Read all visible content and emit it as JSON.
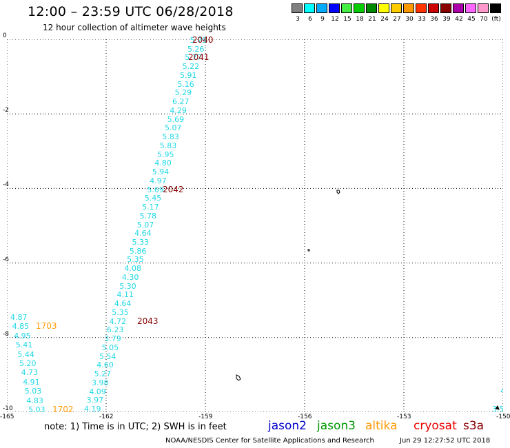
{
  "title": "12:00 – 23:59 UTC 06/28/2018",
  "subtitle": "12 hour collection of altimeter wave heights",
  "legend": {
    "colors": [
      "#808080",
      "#00ffff",
      "#00aaff",
      "#0000ff",
      "#44ee44",
      "#00cc00",
      "#008800",
      "#ffff00",
      "#ffcc00",
      "#ff9900",
      "#ff3300",
      "#cc0000",
      "#880000",
      "#aa00aa",
      "#ff66ff",
      "#ff99cc",
      "#000000"
    ],
    "labels": [
      "3",
      "6",
      "9",
      "12",
      "15",
      "18",
      "21",
      "24",
      "27",
      "30",
      "33",
      "36",
      "39",
      "42",
      "45",
      "70",
      "(ft)"
    ]
  },
  "axes": {
    "x_ticks": [
      "-165",
      "-162",
      "-159",
      "-156",
      "-153",
      "-150"
    ],
    "y_ticks": [
      "0",
      "-2",
      "-4",
      "-6",
      "-8",
      "-10"
    ],
    "xlim": [
      -165,
      -150
    ],
    "ylim": [
      -10,
      0
    ]
  },
  "track": {
    "color": "#1ed8e6",
    "values": [
      "5.79",
      "5.26",
      "5.77",
      "5.22",
      "5.91",
      "5.16",
      "5.29",
      "6.27",
      "4.29",
      "5.69",
      "5.07",
      "5.83",
      "5.83",
      "5.95",
      "4.80",
      "5.94",
      "4.97",
      "5.69",
      "5.45",
      "5.17",
      "5.78",
      "5.07",
      "4.64",
      "5.33",
      "5.86",
      "5.35",
      "4.08",
      "4.30",
      "5.30",
      "4.11",
      "4.64",
      "5.35",
      "4.72",
      "6.23",
      "3.79",
      "5.05",
      "5.54",
      "4.60",
      "5.27",
      "3.98",
      "4.09",
      "3.97",
      "4.19"
    ]
  },
  "left_track": {
    "values": [
      "4.87",
      "4.85",
      "4.95",
      "5.41",
      "5.44",
      "5.20",
      "4.73",
      "4.91",
      "5.03",
      "4.83",
      "5.03"
    ]
  },
  "passes": [
    {
      "id": "2040",
      "color": "#880000"
    },
    {
      "id": "2041",
      "color": "#880000"
    },
    {
      "id": "2042",
      "color": "#880000"
    },
    {
      "id": "2043",
      "color": "#880000"
    },
    {
      "id": "1703",
      "color": "#ff9900"
    },
    {
      "id": "1702",
      "color": "#ff9900"
    }
  ],
  "edge_values": [
    "4",
    "4",
    "3.5"
  ],
  "note": "note:  1) Time is in UTC; 2) SWH is in feet",
  "satellites": [
    {
      "name": "jason2",
      "color": "#0000cc"
    },
    {
      "name": "jason3",
      "color": "#009900"
    },
    {
      "name": "altika",
      "color": "#ff9900"
    },
    {
      "name": "cryosat",
      "color": "#ee0000"
    },
    {
      "name": "s3a",
      "color": "#880000"
    }
  ],
  "credit": "NOAA/NESDIS Center for Satellite Applications and Research",
  "timestamp": "Jun 29 12:27:52 UTC 2018"
}
